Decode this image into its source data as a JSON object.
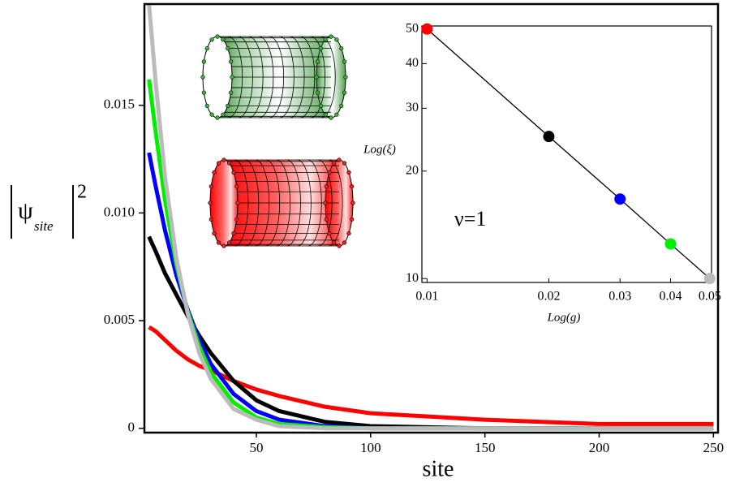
{
  "chart_data": [
    {
      "type": "line",
      "xlabel": "site",
      "ylabel": {
        "symbol": "ψ",
        "subscript": "site",
        "power": "2"
      },
      "x": [
        3,
        6,
        10,
        15,
        20,
        25,
        30,
        40,
        50,
        60,
        80,
        100,
        150,
        200,
        250
      ],
      "series": [
        {
          "color": "#ff0000",
          "values": [
            0.0047,
            0.0045,
            0.0041,
            0.0036,
            0.0032,
            0.0029,
            0.0027,
            0.0022,
            0.0018,
            0.0015,
            0.001,
            0.0007,
            0.0004,
            0.0002,
            0.0002
          ]
        },
        {
          "color": "#000000",
          "values": [
            0.0089,
            0.0082,
            0.0072,
            0.0062,
            0.0052,
            0.0043,
            0.0035,
            0.0022,
            0.0013,
            0.0008,
            0.0003,
            0.0001,
            0,
            0,
            0
          ]
        },
        {
          "color": "#0000ff",
          "values": [
            0.0128,
            0.0112,
            0.0092,
            0.0071,
            0.0055,
            0.0041,
            0.003,
            0.0016,
            0.0008,
            0.0004,
            0.0001,
            0,
            0,
            0,
            0
          ]
        },
        {
          "color": "#00ee00",
          "values": [
            0.0162,
            0.0137,
            0.0106,
            0.0076,
            0.0054,
            0.0038,
            0.0026,
            0.0012,
            0.0005,
            0.0002,
            5e-05,
            0,
            0,
            0,
            0
          ]
        },
        {
          "color": "#bbbbbb",
          "values": [
            0.0197,
            0.016,
            0.0117,
            0.0079,
            0.0053,
            0.0035,
            0.0023,
            0.0009,
            0.0004,
            0.0001,
            0,
            0,
            0,
            0,
            0
          ]
        }
      ],
      "xlim": [
        1,
        252
      ],
      "ylim": [
        -0.0002,
        0.0197
      ],
      "xticks": [
        50,
        100,
        150,
        200,
        250
      ],
      "yticks": [
        0,
        0.005,
        {
          "value": 0.01,
          "label": "0.010"
        },
        0.015
      ]
    },
    {
      "type": "scatter",
      "xlabel": "Log(g)",
      "ylabel": "Log(ξ)",
      "annotation": "ν=1",
      "x": [
        0.01,
        0.02,
        0.03,
        0.04,
        0.05
      ],
      "values": [
        50,
        25,
        16.7,
        12.5,
        10
      ],
      "point_colors": [
        "#ff0000",
        "#000000",
        "#0000ff",
        "#00ee00",
        "#bbbbbb"
      ],
      "line_color": "#000000",
      "xscale": "log",
      "yscale": "log",
      "xlim": [
        0.0098,
        0.0505
      ],
      "ylim": [
        9.75,
        51
      ],
      "xticks": [
        0.01,
        0.02,
        0.03,
        0.04,
        0.05
      ],
      "yticks": [
        10,
        20,
        30,
        40,
        50
      ]
    }
  ]
}
